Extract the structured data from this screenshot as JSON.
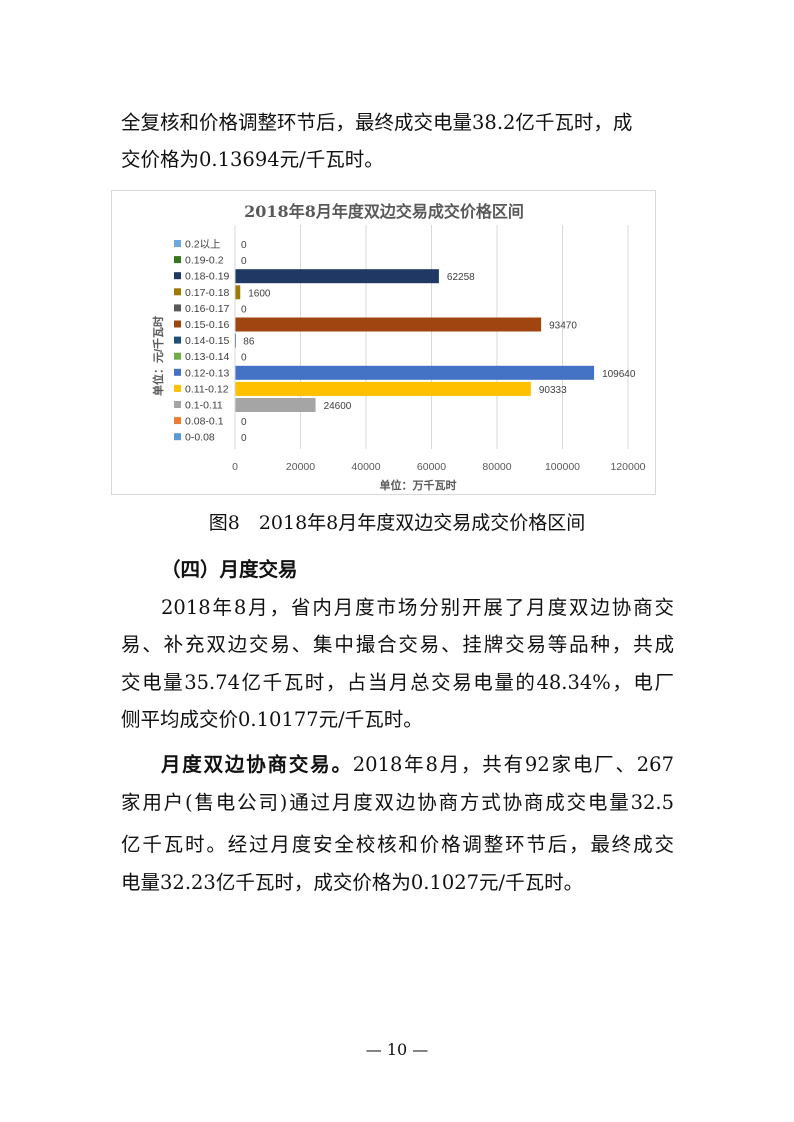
{
  "paragraph1": {
    "lines": [
      "全复核和价格调整环节后，最终成交电量38.2亿千瓦时，成",
      "交价格为0.13694元/千瓦时。"
    ]
  },
  "figure_caption": "图8　2018年8月年度双边交易成交价格区间",
  "section_heading": "（四）月度交易",
  "paragraph2": {
    "lines": [
      "2018年8月，省内月度市场分别开展了月度双边协商交",
      "易、补充双边交易、集中撮合交易、挂牌交易等品种，共成",
      "交电量35.74亿千瓦时，占当月总交易电量的48.34%，电厂",
      "侧平均成交价0.10177元/千瓦时。"
    ]
  },
  "paragraph3": {
    "lead": "月度双边协商交易。",
    "lines": [
      "2018年8月，共有92家电厂、267",
      "家用户(售电公司)通过月度双边协商方式协商成交电量32.5",
      "亿千瓦时。经过月度安全校核和价格调整环节后，最终成交",
      "电量32.23亿千瓦时，成交价格为0.1027元/千瓦时。"
    ]
  },
  "page_number": "— 10 —",
  "chart_data": {
    "type": "bar",
    "orientation": "horizontal",
    "title": "2018年8月年度双边交易成交价格区间",
    "xlabel": "单位：万千瓦时",
    "ylabel": "单位：元/千瓦时",
    "xlim": [
      0,
      120000
    ],
    "xticks": [
      "0",
      "20000",
      "40000",
      "60000",
      "80000",
      "100000",
      "120000"
    ],
    "grid": true,
    "legend": "left",
    "categories": [
      "0.2以上",
      "0.19-0.2",
      "0.18-0.19",
      "0.17-0.18",
      "0.16-0.17",
      "0.15-0.16",
      "0.14-0.15",
      "0.13-0.14",
      "0.12-0.13",
      "0.11-0.12",
      "0.1-0.11",
      "0.08-0.1",
      "0-0.08"
    ],
    "values": [
      0,
      0,
      62258,
      1600,
      0,
      93470,
      86,
      0,
      109640,
      90333,
      24600,
      0,
      0
    ],
    "colors": [
      "#6fa8dc",
      "#38761d",
      "#1f3864",
      "#a07a00",
      "#595959",
      "#a0450f",
      "#1f4e79",
      "#70ad47",
      "#4472c4",
      "#ffc000",
      "#a5a5a5",
      "#ed7d31",
      "#5b9bd5"
    ]
  }
}
